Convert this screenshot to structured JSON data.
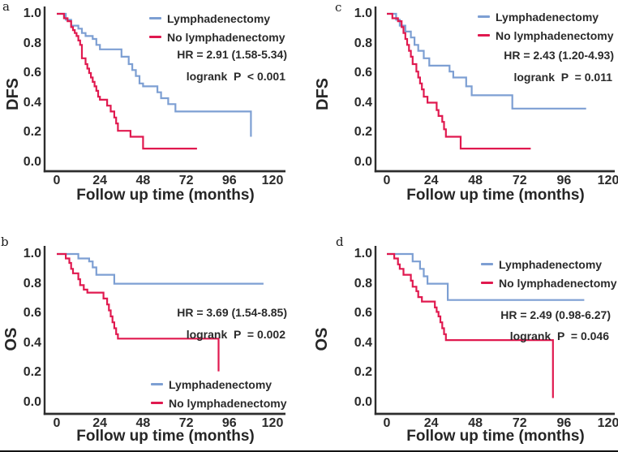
{
  "figure": {
    "background_color": "#ffffff",
    "bottom_rule_color": "#141414",
    "axis_color": "#2d2d2d"
  },
  "chart_data": [
    {
      "panel_label": "a",
      "type": "line",
      "subtype": "kaplan-meier-step",
      "xlabel": "Follow up time (months)",
      "ylabel": "DFS",
      "xlim": [
        0,
        126
      ],
      "ylim": [
        0,
        1.0
      ],
      "xticks": [
        0,
        24,
        48,
        72,
        96,
        120
      ],
      "ytick_labels": [
        "1.0",
        "0.8",
        "0.6",
        "0.4",
        "0.2",
        "0.0"
      ],
      "grid": false,
      "legend_position": "top-right",
      "annotations": [
        "HR = 2.91 (1.58-5.34)",
        "logrank  P  < 0.001"
      ],
      "series": [
        {
          "name": "Lymphadenectomy",
          "color": "#7d9fd3",
          "steps": [
            [
              0,
              1.0
            ],
            [
              5,
              0.96
            ],
            [
              8,
              0.92
            ],
            [
              12,
              0.9
            ],
            [
              14,
              0.87
            ],
            [
              16,
              0.85
            ],
            [
              20,
              0.83
            ],
            [
              22,
              0.79
            ],
            [
              24,
              0.76
            ],
            [
              36,
              0.71
            ],
            [
              40,
              0.66
            ],
            [
              42,
              0.62
            ],
            [
              44,
              0.58
            ],
            [
              46,
              0.53
            ],
            [
              48,
              0.51
            ],
            [
              56,
              0.47
            ],
            [
              58,
              0.43
            ],
            [
              62,
              0.39
            ],
            [
              66,
              0.34
            ],
            [
              108,
              0.17
            ]
          ]
        },
        {
          "name": "No lymphadenectomy",
          "color": "#e0194f",
          "steps": [
            [
              0,
              1.0
            ],
            [
              4,
              0.97
            ],
            [
              6,
              0.95
            ],
            [
              8,
              0.91
            ],
            [
              9,
              0.89
            ],
            [
              10,
              0.87
            ],
            [
              11,
              0.85
            ],
            [
              12,
              0.82
            ],
            [
              13,
              0.79
            ],
            [
              14,
              0.7
            ],
            [
              16,
              0.66
            ],
            [
              17,
              0.63
            ],
            [
              18,
              0.6
            ],
            [
              19,
              0.57
            ],
            [
              20,
              0.54
            ],
            [
              21,
              0.51
            ],
            [
              22,
              0.48
            ],
            [
              23,
              0.44
            ],
            [
              24,
              0.42
            ],
            [
              28,
              0.38
            ],
            [
              30,
              0.34
            ],
            [
              32,
              0.3
            ],
            [
              33,
              0.26
            ],
            [
              34,
              0.21
            ],
            [
              41,
              0.17
            ],
            [
              48,
              0.09
            ],
            [
              78,
              0.09
            ]
          ]
        }
      ]
    },
    {
      "panel_label": "b",
      "type": "line",
      "subtype": "kaplan-meier-step",
      "xlabel": "Follow up time (months)",
      "ylabel": "OS",
      "xlim": [
        0,
        126
      ],
      "ylim": [
        0,
        1.0
      ],
      "xticks": [
        0,
        24,
        48,
        72,
        96,
        120
      ],
      "ytick_labels": [
        "1.0",
        "0.8",
        "0.6",
        "0.4",
        "0.2",
        "0.0"
      ],
      "grid": false,
      "legend_position": "bottom-right",
      "annotations": [
        "HR = 3.69 (1.54-8.85)",
        "logrank  P  = 0.002"
      ],
      "series": [
        {
          "name": "Lymphadenectomy",
          "color": "#7d9fd3",
          "steps": [
            [
              0,
              1.0
            ],
            [
              12,
              0.97
            ],
            [
              18,
              0.95
            ],
            [
              20,
              0.91
            ],
            [
              22,
              0.86
            ],
            [
              32,
              0.8
            ],
            [
              115,
              0.8
            ]
          ]
        },
        {
          "name": "No lymphadenectomy",
          "color": "#e0194f",
          "steps": [
            [
              0,
              1.0
            ],
            [
              5,
              0.97
            ],
            [
              7,
              0.94
            ],
            [
              8,
              0.9
            ],
            [
              9,
              0.87
            ],
            [
              12,
              0.83
            ],
            [
              13,
              0.79
            ],
            [
              15,
              0.76
            ],
            [
              17,
              0.74
            ],
            [
              26,
              0.7
            ],
            [
              28,
              0.66
            ],
            [
              29,
              0.62
            ],
            [
              30,
              0.58
            ],
            [
              31,
              0.54
            ],
            [
              32,
              0.5
            ],
            [
              33,
              0.46
            ],
            [
              34,
              0.43
            ],
            [
              90,
              0.21
            ]
          ]
        }
      ]
    },
    {
      "panel_label": "c",
      "type": "line",
      "subtype": "kaplan-meier-step",
      "xlabel": "Follow up time (months)",
      "ylabel": "DFS",
      "xlim": [
        0,
        126
      ],
      "ylim": [
        0,
        1.0
      ],
      "xticks": [
        0,
        24,
        48,
        72,
        96,
        120
      ],
      "ytick_labels": [
        "1.0",
        "0.8",
        "0.6",
        "0.4",
        "0.2",
        "0.0"
      ],
      "grid": false,
      "legend_position": "top-right",
      "annotations": [
        "HR = 2.43 (1.20-4.93)",
        "logrank  P  = 0.011"
      ],
      "series": [
        {
          "name": "Lymphadenectomy",
          "color": "#7d9fd3",
          "steps": [
            [
              0,
              1.0
            ],
            [
              5,
              0.96
            ],
            [
              7,
              0.92
            ],
            [
              10,
              0.88
            ],
            [
              13,
              0.84
            ],
            [
              15,
              0.79
            ],
            [
              17,
              0.75
            ],
            [
              20,
              0.7
            ],
            [
              23,
              0.65
            ],
            [
              34,
              0.61
            ],
            [
              36,
              0.57
            ],
            [
              43,
              0.51
            ],
            [
              46,
              0.45
            ],
            [
              68,
              0.36
            ],
            [
              108,
              0.36
            ]
          ]
        },
        {
          "name": "No lymphadenectomy",
          "color": "#e0194f",
          "steps": [
            [
              0,
              1.0
            ],
            [
              3,
              0.97
            ],
            [
              6,
              0.95
            ],
            [
              8,
              0.91
            ],
            [
              9,
              0.87
            ],
            [
              10,
              0.83
            ],
            [
              11,
              0.79
            ],
            [
              12,
              0.75
            ],
            [
              13,
              0.71
            ],
            [
              14,
              0.66
            ],
            [
              16,
              0.61
            ],
            [
              17,
              0.57
            ],
            [
              18,
              0.53
            ],
            [
              19,
              0.49
            ],
            [
              20,
              0.44
            ],
            [
              22,
              0.4
            ],
            [
              27,
              0.35
            ],
            [
              28,
              0.31
            ],
            [
              30,
              0.27
            ],
            [
              31,
              0.22
            ],
            [
              32,
              0.17
            ],
            [
              40,
              0.09
            ],
            [
              78,
              0.09
            ]
          ]
        }
      ]
    },
    {
      "panel_label": "d",
      "type": "line",
      "subtype": "kaplan-meier-step",
      "xlabel": "Follow up time (months)",
      "ylabel": "OS",
      "xlim": [
        0,
        126
      ],
      "ylim": [
        0,
        1.0
      ],
      "xticks": [
        0,
        24,
        48,
        72,
        96,
        120
      ],
      "ytick_labels": [
        "1.0",
        "0.8",
        "0.6",
        "0.4",
        "0.2",
        "0.0"
      ],
      "grid": false,
      "legend_position": "top-right",
      "annotations": [
        "HR = 2.49 (0.98-6.27)",
        "logrank  P  = 0.046"
      ],
      "series": [
        {
          "name": "Lymphadenectomy",
          "color": "#7d9fd3",
          "steps": [
            [
              0,
              1.0
            ],
            [
              14,
              0.95
            ],
            [
              18,
              0.9
            ],
            [
              20,
              0.85
            ],
            [
              22,
              0.8
            ],
            [
              33,
              0.69
            ],
            [
              107,
              0.69
            ]
          ]
        },
        {
          "name": "No lymphadenectomy",
          "color": "#e0194f",
          "steps": [
            [
              0,
              1.0
            ],
            [
              4,
              0.97
            ],
            [
              6,
              0.93
            ],
            [
              7,
              0.9
            ],
            [
              9,
              0.86
            ],
            [
              13,
              0.82
            ],
            [
              14,
              0.78
            ],
            [
              16,
              0.75
            ],
            [
              17,
              0.71
            ],
            [
              19,
              0.68
            ],
            [
              26,
              0.64
            ],
            [
              27,
              0.61
            ],
            [
              28,
              0.58
            ],
            [
              29,
              0.54
            ],
            [
              30,
              0.5
            ],
            [
              31,
              0.46
            ],
            [
              32,
              0.42
            ],
            [
              90,
              0.03
            ]
          ]
        }
      ]
    }
  ]
}
